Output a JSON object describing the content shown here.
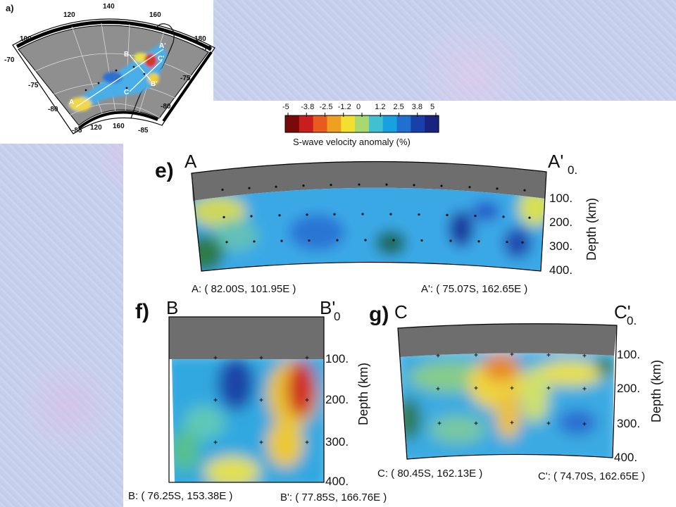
{
  "colorbar": {
    "ticks": [
      "-5",
      "-3.8",
      "-2.5",
      "-1.2",
      "0",
      "1.2",
      "2.5",
      "3.8",
      "5"
    ],
    "title": "S-wave velocity anomaly (%)",
    "colors": [
      "#7a0a0a",
      "#c81e1e",
      "#e85a1e",
      "#f0a020",
      "#f2e030",
      "#a8d870",
      "#40c0d0",
      "#18a0e0",
      "#2070d0",
      "#1840a8",
      "#1a237e"
    ]
  },
  "map": {
    "label": "a)",
    "lon_top": [
      "100",
      "120",
      "140",
      "160",
      "180"
    ],
    "lon_bottom": [
      "120",
      "160"
    ],
    "lat_left": [
      "-70",
      "-75",
      "-80",
      "-85"
    ],
    "lat_right": [
      "-70",
      "-75",
      "-80",
      "-85"
    ],
    "profile_labels": [
      "A",
      "A'",
      "B",
      "B'",
      "C",
      "C'"
    ]
  },
  "sections": {
    "e": {
      "letter": "e)",
      "start": "A",
      "end": "A'",
      "depth_ticks": [
        "0.",
        "100.",
        "200.",
        "300.",
        "400."
      ],
      "depth_label": "Depth (km)",
      "start_coord": "A: ( 82.00S, 101.95E )",
      "end_coord": "A': ( 75.07S, 162.65E )"
    },
    "f": {
      "letter": "f)",
      "start": "B",
      "end": "B'",
      "end_zero": "0",
      "depth_ticks": [
        "100.",
        "200.",
        "300.",
        "400."
      ],
      "depth_label": "Depth (km)",
      "start_coord": "B: ( 76.25S, 153.38E )",
      "end_coord": "B': ( 77.85S, 166.76E )"
    },
    "g": {
      "letter": "g)",
      "start": "C",
      "end": "C'",
      "end_zero": "0.",
      "depth_ticks": [
        "100.",
        "200.",
        "300.",
        "400."
      ],
      "depth_label": "Depth (km)",
      "start_coord": "C: ( 80.45S, 162.13E )",
      "end_coord": "C': ( 74.70S, 162.65E )"
    }
  }
}
